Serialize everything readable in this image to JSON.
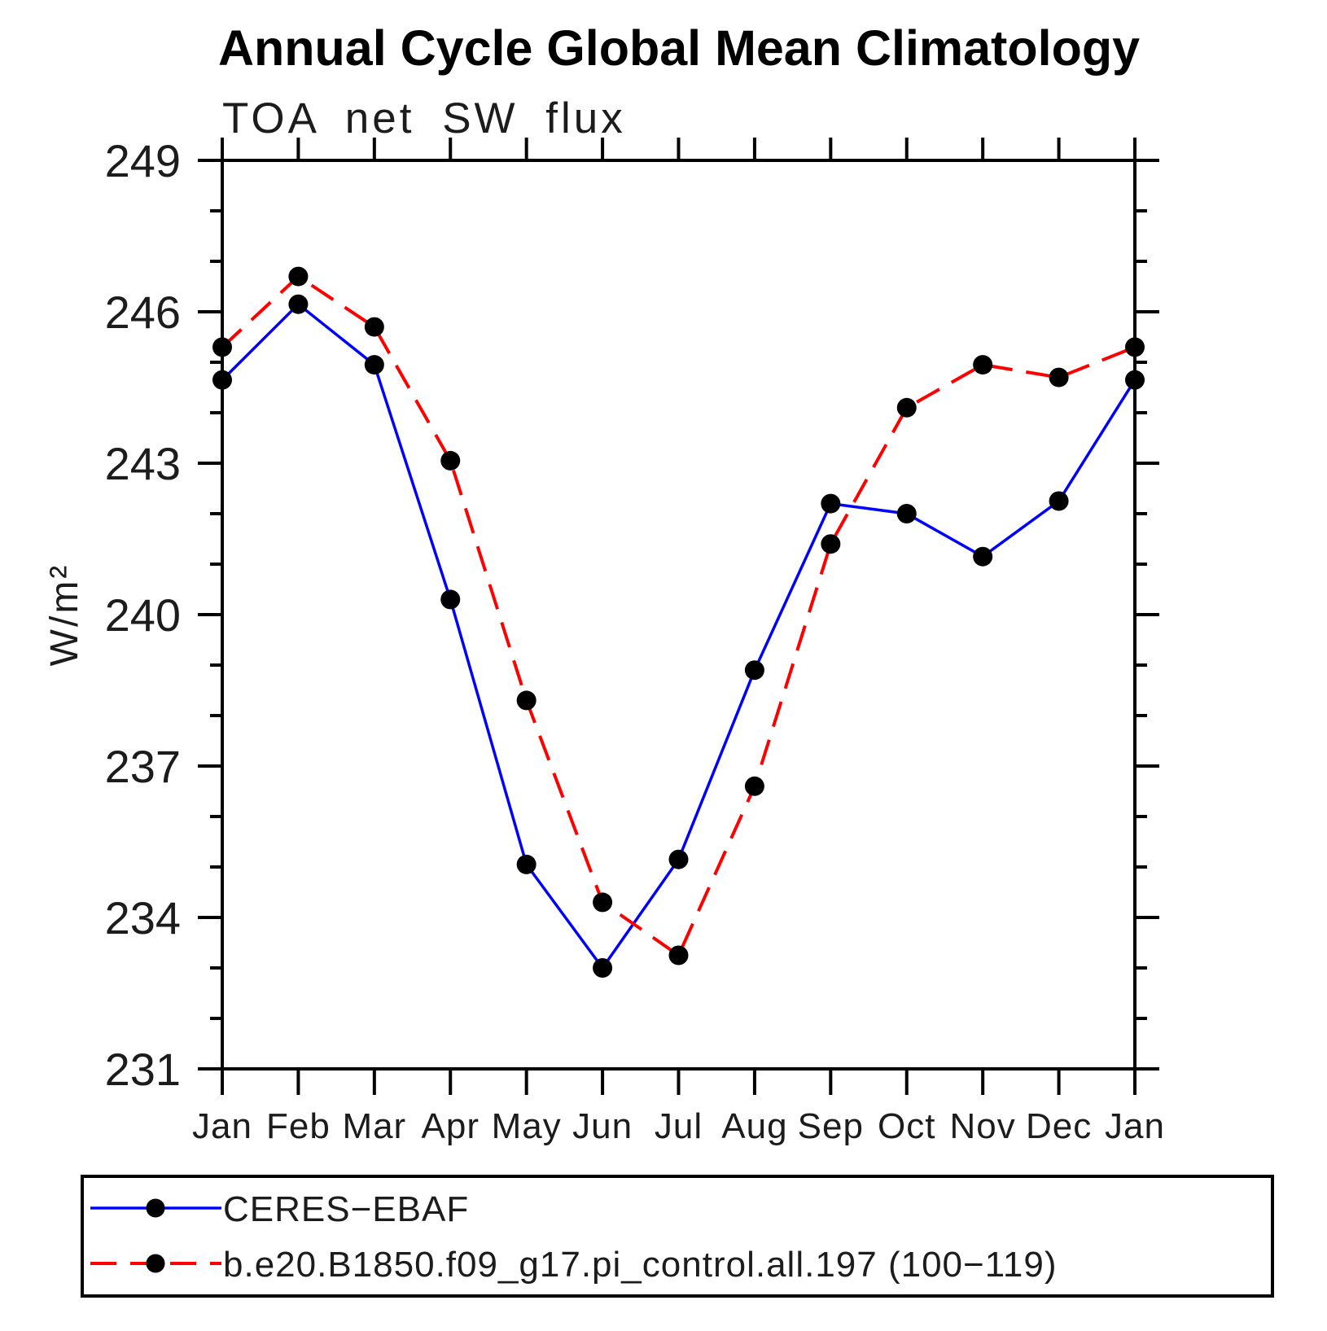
{
  "page": {
    "background": "#ffffff"
  },
  "chart_data": {
    "type": "line",
    "title": "Annual Cycle Global Mean Climatology",
    "subtitle": "TOA net SW flux",
    "ylabel": "W/m²",
    "xlabel": "",
    "categories": [
      "Jan",
      "Feb",
      "Mar",
      "Apr",
      "May",
      "Jun",
      "Jul",
      "Aug",
      "Sep",
      "Oct",
      "Nov",
      "Dec",
      "Jan"
    ],
    "ylim": [
      231,
      249
    ],
    "yticks_major": [
      231,
      234,
      237,
      240,
      243,
      246,
      249
    ],
    "ytick_minor_interval": 1,
    "grid": false,
    "legend_position": "bottom-left",
    "axis_color": "#000000",
    "marker_shape": "filled-circle",
    "series": [
      {
        "name": "CERES−EBAF",
        "color": "#0000ff",
        "line_style": "solid",
        "marker_color": "#000000",
        "values": [
          244.65,
          246.15,
          244.95,
          240.3,
          235.05,
          233.0,
          235.15,
          238.9,
          242.2,
          242.0,
          241.15,
          242.25,
          244.65
        ]
      },
      {
        "name": "b.e20.B1850.f09_g17.pi_control.all.197 (100−119)",
        "color": "#ff0000",
        "line_style": "dashed",
        "marker_color": "#000000",
        "values": [
          245.3,
          246.7,
          245.7,
          243.05,
          238.3,
          234.3,
          233.25,
          236.6,
          241.4,
          244.1,
          244.95,
          244.7,
          245.3
        ]
      }
    ]
  }
}
